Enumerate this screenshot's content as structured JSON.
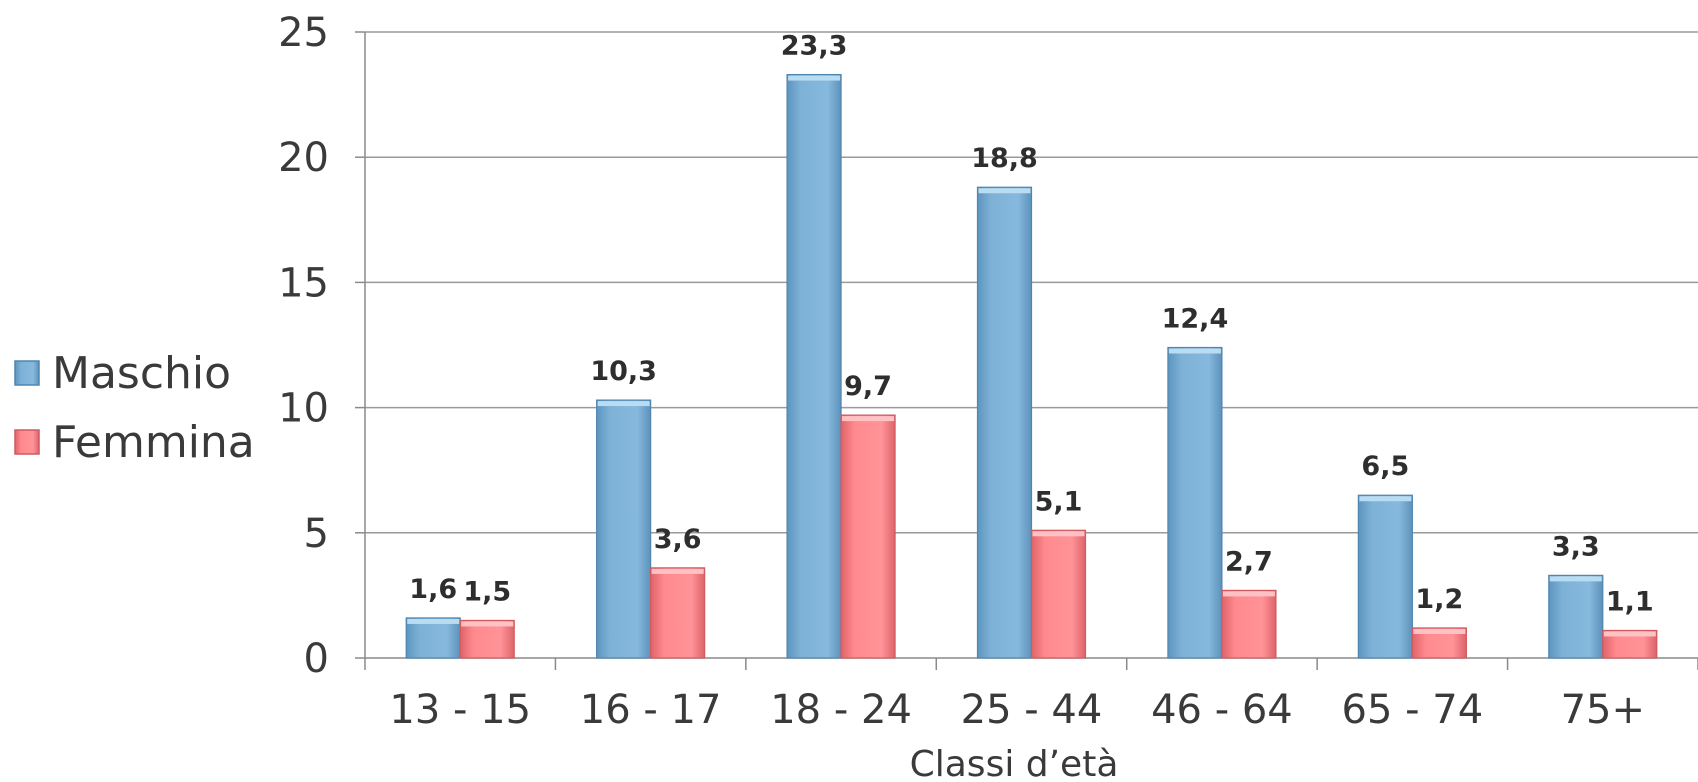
{
  "chart_data": {
    "type": "bar",
    "categories": [
      "13 - 15",
      "16 - 17",
      "18 - 24",
      "25 - 44",
      "46 - 64",
      "65 - 74",
      "75+"
    ],
    "series": [
      {
        "name": "Maschio",
        "values": [
          1.6,
          10.3,
          23.3,
          18.8,
          12.4,
          6.5,
          3.3
        ],
        "labels": [
          "1,6",
          "10,3",
          "23,3",
          "18,8",
          "12,4",
          "6,5",
          "3,3"
        ],
        "color": "#7EB1D6"
      },
      {
        "name": "Femmina",
        "values": [
          1.5,
          3.6,
          9.7,
          5.1,
          2.7,
          1.2,
          1.1
        ],
        "labels": [
          "1,5",
          "3,6",
          "9,7",
          "5,1",
          "2,7",
          "1,2",
          "1,1"
        ],
        "color": "#FF8A8E"
      }
    ],
    "yticks": [
      0,
      5,
      10,
      15,
      20,
      25
    ],
    "ylim": [
      0,
      25
    ],
    "xlabel": "Classi d’età",
    "ylabel": "",
    "title": "",
    "grid": true,
    "legend_position": "left"
  }
}
